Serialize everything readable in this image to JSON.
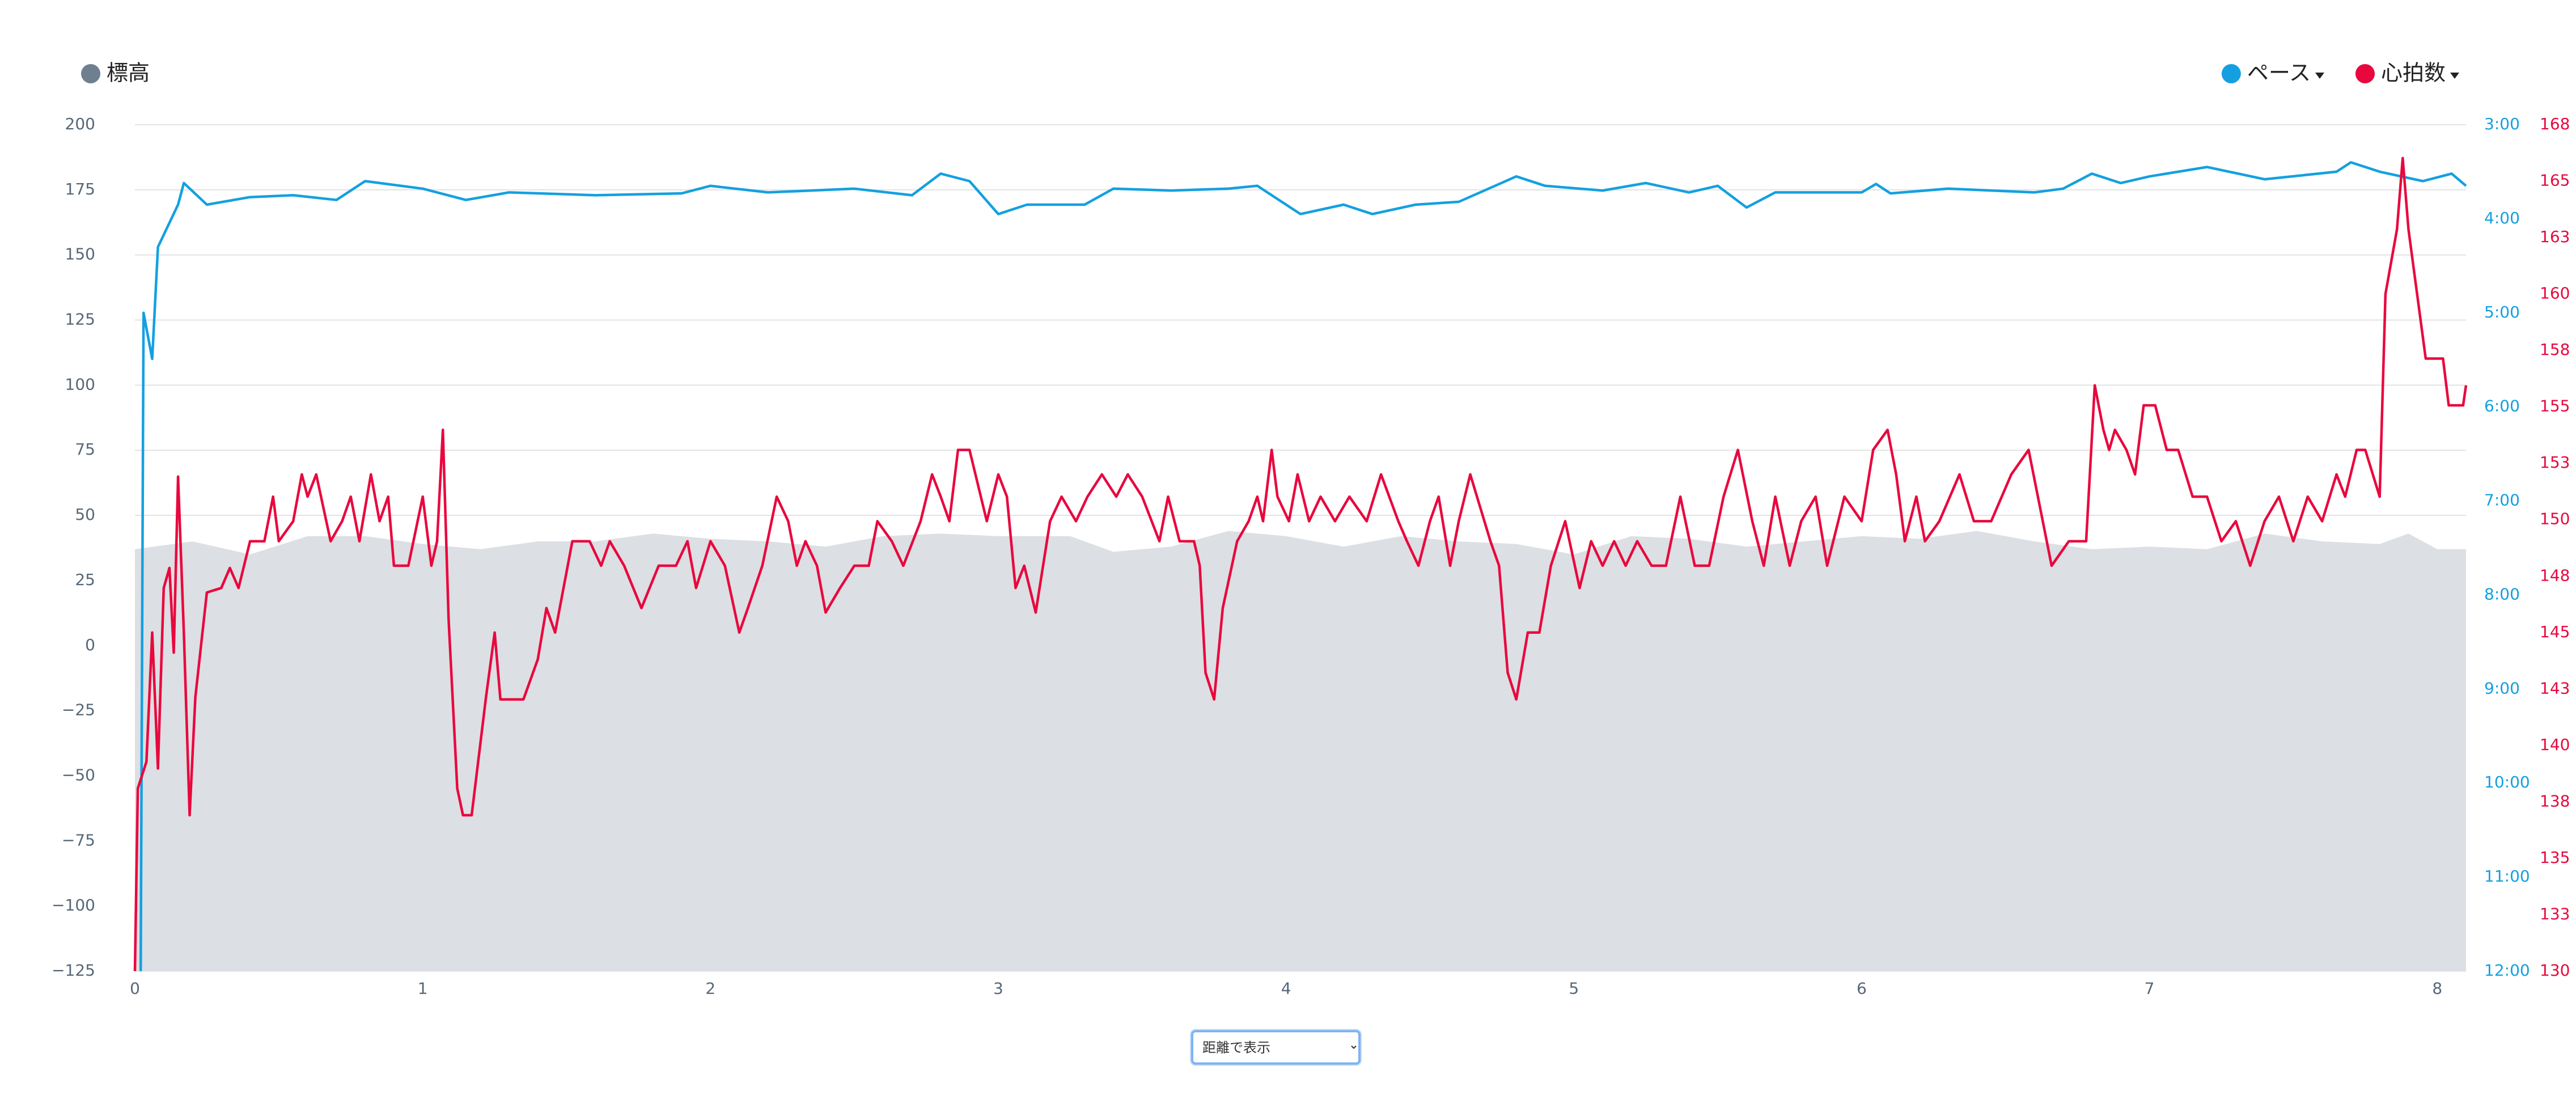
{
  "chart_data": {
    "type": "line",
    "xlim": [
      0,
      8.1
    ],
    "xticks": [
      0,
      1,
      2,
      3,
      4,
      5,
      6,
      7,
      8
    ],
    "ylim": [
      -125,
      200
    ],
    "yticks": [
      {
        "value": -125,
        "label": "−125"
      },
      {
        "value": -100,
        "label": "−100"
      },
      {
        "value": -75,
        "label": "−75"
      },
      {
        "value": -50,
        "label": "−50"
      },
      {
        "value": -25,
        "label": "−25"
      },
      0,
      25,
      50,
      75,
      100,
      125,
      150,
      175,
      200
    ],
    "y2lim": [
      12,
      3
    ],
    "y2ticks": [
      {
        "value": 3,
        "label": "3:00"
      },
      {
        "value": 4,
        "label": "4:00"
      },
      {
        "value": 5,
        "label": "5:00"
      },
      {
        "value": 6,
        "label": "6:00"
      },
      {
        "value": 7,
        "label": "7:00"
      },
      {
        "value": 8,
        "label": "8:00"
      },
      {
        "value": 9,
        "label": "9:00"
      },
      {
        "value": 10,
        "label": "10:00"
      },
      {
        "value": 11,
        "label": "11:00"
      },
      {
        "value": 12,
        "label": "12:00"
      }
    ],
    "y3lim": [
      130,
      168
    ],
    "y3ticks": [
      130,
      {
        "value": 132.533,
        "label": "133"
      },
      {
        "value": 135.067,
        "label": "135"
      },
      {
        "value": 137.6,
        "label": "138"
      },
      {
        "value": 140.133,
        "label": "140"
      },
      {
        "value": 142.667,
        "label": "143"
      },
      {
        "value": 145.2,
        "label": "145"
      },
      {
        "value": 147.733,
        "label": "148"
      },
      {
        "value": 150.267,
        "label": "150"
      },
      {
        "value": 152.8,
        "label": "153"
      },
      {
        "value": 155.333,
        "label": "155"
      },
      {
        "value": 157.867,
        "label": "158"
      },
      {
        "value": 160.4,
        "label": "160"
      },
      {
        "value": 162.933,
        "label": "163"
      },
      {
        "value": 165.467,
        "label": "165"
      },
      168
    ],
    "grid": true,
    "series": [
      {
        "name": "標高",
        "color": "#6e7f90",
        "fill_color": "#dcdfe3",
        "area": true,
        "axis": "y",
        "legend_corner": "top-left",
        "legend_menu": false,
        "x": [
          0,
          0.2,
          0.4,
          0.6,
          0.8,
          1.0,
          1.2,
          1.4,
          1.6,
          1.8,
          2.0,
          2.2,
          2.4,
          2.6,
          2.8,
          3.0,
          3.25,
          3.4,
          3.6,
          3.8,
          4.0,
          4.2,
          4.4,
          4.6,
          4.8,
          5.0,
          5.2,
          5.4,
          5.6,
          5.8,
          6.0,
          6.2,
          6.4,
          6.6,
          6.8,
          7.0,
          7.2,
          7.4,
          7.6,
          7.8,
          7.9,
          8.0,
          8.1
        ],
        "values": [
          37,
          40,
          35,
          42,
          42,
          39,
          37,
          40,
          40,
          43,
          41,
          40,
          38,
          42,
          43,
          42,
          42,
          36,
          38,
          44,
          42,
          38,
          42,
          40,
          39,
          35,
          42,
          41,
          38,
          40,
          42,
          41,
          44,
          40,
          37,
          38,
          37,
          43,
          40,
          39,
          43,
          37,
          37
        ]
      },
      {
        "name": "ペース",
        "color": "#14a0e0",
        "area": false,
        "axis": "y2",
        "legend_corner": "top-right",
        "legend_menu": true,
        "x": [
          0.02,
          0.03,
          0.06,
          0.08,
          0.15,
          0.17,
          0.25,
          0.4,
          0.55,
          0.7,
          0.8,
          1.0,
          1.15,
          1.3,
          1.6,
          1.9,
          2.0,
          2.2,
          2.5,
          2.7,
          2.8,
          2.9,
          3.0,
          3.1,
          3.3,
          3.4,
          3.6,
          3.8,
          3.9,
          4.05,
          4.2,
          4.3,
          4.45,
          4.6,
          4.8,
          4.9,
          5.1,
          5.25,
          5.4,
          5.5,
          5.6,
          5.7,
          6.0,
          6.05,
          6.1,
          6.3,
          6.6,
          6.7,
          6.8,
          6.9,
          7.0,
          7.2,
          7.4,
          7.65,
          7.7,
          7.8,
          7.95,
          8.05,
          8.1
        ],
        "values": [
          12,
          5.0,
          5.49,
          4.3,
          3.85,
          3.62,
          3.85,
          3.77,
          3.75,
          3.8,
          3.6,
          3.68,
          3.8,
          3.72,
          3.75,
          3.73,
          3.65,
          3.72,
          3.68,
          3.75,
          3.52,
          3.6,
          3.95,
          3.85,
          3.85,
          3.68,
          3.7,
          3.68,
          3.65,
          3.95,
          3.85,
          3.95,
          3.85,
          3.82,
          3.55,
          3.65,
          3.7,
          3.62,
          3.72,
          3.65,
          3.88,
          3.72,
          3.72,
          3.63,
          3.73,
          3.68,
          3.72,
          3.68,
          3.52,
          3.62,
          3.55,
          3.45,
          3.58,
          3.5,
          3.4,
          3.5,
          3.6,
          3.52,
          3.65
        ]
      },
      {
        "name": "心拍数",
        "color": "#e8083e",
        "area": false,
        "axis": "y3",
        "legend_corner": "top-right",
        "legend_menu": true,
        "x": [
          0.0,
          0.01,
          0.04,
          0.06,
          0.08,
          0.1,
          0.12,
          0.135,
          0.15,
          0.17,
          0.19,
          0.21,
          0.25,
          0.3,
          0.33,
          0.36,
          0.4,
          0.45,
          0.48,
          0.5,
          0.55,
          0.58,
          0.6,
          0.63,
          0.68,
          0.72,
          0.75,
          0.78,
          0.82,
          0.85,
          0.88,
          0.9,
          0.95,
          1.0,
          1.03,
          1.05,
          1.07,
          1.09,
          1.12,
          1.14,
          1.17,
          1.22,
          1.25,
          1.27,
          1.35,
          1.4,
          1.43,
          1.46,
          1.52,
          1.58,
          1.62,
          1.65,
          1.7,
          1.76,
          1.82,
          1.88,
          1.92,
          1.95,
          2.0,
          2.05,
          2.1,
          2.13,
          2.18,
          2.23,
          2.27,
          2.3,
          2.33,
          2.37,
          2.4,
          2.45,
          2.5,
          2.55,
          2.58,
          2.63,
          2.67,
          2.73,
          2.77,
          2.8,
          2.83,
          2.86,
          2.9,
          2.96,
          3.0,
          3.03,
          3.06,
          3.09,
          3.13,
          3.18,
          3.22,
          3.27,
          3.31,
          3.36,
          3.41,
          3.45,
          3.5,
          3.56,
          3.59,
          3.63,
          3.68,
          3.7,
          3.72,
          3.75,
          3.78,
          3.83,
          3.87,
          3.9,
          3.92,
          3.95,
          3.97,
          4.01,
          4.04,
          4.08,
          4.12,
          4.17,
          4.22,
          4.28,
          4.33,
          4.39,
          4.42,
          4.46,
          4.5,
          4.53,
          4.57,
          4.6,
          4.64,
          4.71,
          4.74,
          4.77,
          4.8,
          4.84,
          4.88,
          4.92,
          4.97,
          5.02,
          5.06,
          5.1,
          5.14,
          5.18,
          5.22,
          5.27,
          5.32,
          5.37,
          5.42,
          5.47,
          5.52,
          5.57,
          5.62,
          5.66,
          5.7,
          5.75,
          5.79,
          5.84,
          5.88,
          5.94,
          6.0,
          6.04,
          6.09,
          6.12,
          6.15,
          6.19,
          6.22,
          6.27,
          6.34,
          6.39,
          6.45,
          6.52,
          6.58,
          6.66,
          6.72,
          6.78,
          6.81,
          6.84,
          6.86,
          6.88,
          6.92,
          6.95,
          6.98,
          7.02,
          7.06,
          7.1,
          7.15,
          7.2,
          7.25,
          7.3,
          7.35,
          7.4,
          7.45,
          7.5,
          7.55,
          7.6,
          7.65,
          7.68,
          7.72,
          7.75,
          7.8,
          7.82,
          7.86,
          7.88,
          7.9,
          7.96,
          8.02,
          8.04,
          8.09,
          8.1
        ],
        "values": [
          130,
          138.2,
          139.4,
          145.2,
          139.1,
          147.2,
          148.1,
          144.3,
          152.2,
          145.2,
          137.0,
          142.3,
          147.0,
          147.2,
          148.1,
          147.2,
          149.3,
          149.3,
          151.3,
          149.3,
          150.2,
          152.3,
          151.3,
          152.3,
          149.3,
          150.2,
          151.3,
          149.3,
          152.3,
          150.2,
          151.3,
          148.2,
          148.2,
          151.3,
          148.2,
          149.3,
          154.3,
          145.8,
          138.2,
          137.0,
          137.0,
          142.3,
          145.2,
          142.2,
          142.2,
          144.0,
          146.3,
          145.2,
          149.3,
          149.3,
          148.2,
          149.3,
          148.2,
          146.3,
          148.2,
          148.2,
          149.3,
          147.2,
          149.3,
          148.2,
          145.2,
          146.3,
          148.2,
          151.3,
          150.2,
          148.2,
          149.3,
          148.2,
          146.1,
          147.2,
          148.2,
          148.2,
          150.2,
          149.3,
          148.2,
          150.2,
          152.3,
          151.3,
          150.2,
          153.4,
          153.4,
          150.2,
          152.3,
          151.3,
          147.2,
          148.2,
          146.1,
          150.2,
          151.3,
          150.2,
          151.3,
          152.3,
          151.3,
          152.3,
          151.3,
          149.3,
          151.3,
          149.3,
          149.3,
          148.2,
          143.4,
          142.2,
          146.3,
          149.3,
          150.2,
          151.3,
          150.2,
          153.4,
          151.3,
          150.2,
          152.3,
          150.2,
          151.3,
          150.2,
          151.3,
          150.2,
          152.3,
          150.2,
          149.3,
          148.2,
          150.2,
          151.3,
          148.2,
          150.2,
          152.3,
          149.3,
          148.2,
          143.4,
          142.2,
          145.2,
          145.2,
          148.2,
          150.2,
          147.2,
          149.3,
          148.2,
          149.3,
          148.2,
          149.3,
          148.2,
          148.2,
          151.3,
          148.2,
          148.2,
          151.3,
          153.4,
          150.2,
          148.2,
          151.3,
          148.2,
          150.2,
          151.3,
          148.2,
          151.3,
          150.2,
          153.4,
          154.3,
          152.3,
          149.3,
          151.3,
          149.3,
          150.2,
          152.3,
          150.2,
          150.2,
          152.3,
          153.4,
          148.2,
          149.3,
          149.3,
          156.3,
          154.3,
          153.4,
          154.3,
          153.4,
          152.3,
          155.4,
          155.4,
          153.4,
          153.4,
          151.3,
          151.3,
          149.3,
          150.2,
          148.2,
          150.2,
          151.3,
          149.3,
          151.3,
          150.2,
          152.3,
          151.3,
          153.4,
          153.4,
          151.3,
          160.4,
          163.3,
          166.5,
          163.3,
          157.5,
          157.5,
          155.4,
          155.4,
          156.3
        ]
      }
    ],
    "view_select": {
      "options": [
        "距離で表示"
      ],
      "selected": 0
    }
  }
}
